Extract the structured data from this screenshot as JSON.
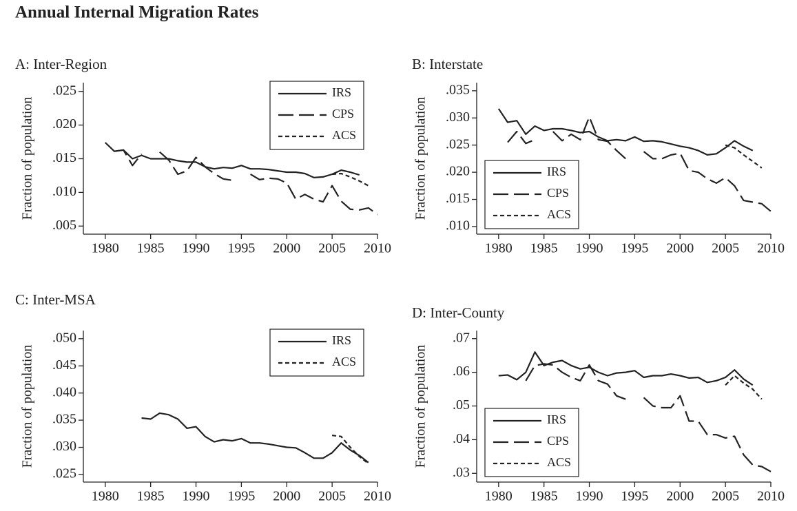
{
  "title": "Annual Internal Migration Rates",
  "chart_data": [
    {
      "type": "line",
      "title": "A: Inter-Region",
      "ylabel": "Fraction of population",
      "legend": "upper right",
      "x": [
        1980,
        1981,
        1982,
        1983,
        1984,
        1985,
        1986,
        1987,
        1988,
        1989,
        1990,
        1991,
        1992,
        1993,
        1994,
        1995,
        1996,
        1997,
        1998,
        1999,
        2000,
        2001,
        2002,
        2003,
        2004,
        2005,
        2006,
        2007,
        2008,
        2009,
        2010
      ],
      "xlim": [
        1978.8,
        2010
      ],
      "xticks": [
        1980,
        1985,
        1990,
        1995,
        2000,
        2005,
        2010
      ],
      "ylim": [
        0.0038,
        0.0263
      ],
      "yticks": [
        {
          "value": 0.005,
          "label": ".005"
        },
        {
          "value": 0.01,
          "label": ".010"
        },
        {
          "value": 0.015,
          "label": ".015"
        },
        {
          "value": 0.02,
          "label": ".020"
        },
        {
          "value": 0.025,
          "label": ".025"
        }
      ],
      "series": [
        {
          "name": "IRS",
          "color": "#222222",
          "line_style": "solid",
          "values": [
            0.0174,
            0.0161,
            0.0163,
            0.015,
            0.0155,
            0.015,
            0.015,
            0.015,
            0.0147,
            0.0145,
            0.0145,
            0.0138,
            0.0135,
            0.0137,
            0.0136,
            0.014,
            0.0135,
            0.0135,
            0.0134,
            0.0132,
            0.013,
            0.013,
            0.0128,
            0.0122,
            0.0123,
            0.0127,
            0.0133,
            0.013,
            0.0126,
            null,
            null
          ]
        },
        {
          "name": "CPS",
          "color": "#222222",
          "line_style": "long-dash",
          "values": [
            null,
            0.0161,
            0.0163,
            0.014,
            0.0157,
            null,
            0.016,
            0.0148,
            0.0127,
            0.0132,
            0.0152,
            0.0138,
            0.0128,
            0.012,
            0.0118,
            null,
            0.0127,
            0.0119,
            0.0121,
            0.012,
            0.0114,
            0.009,
            0.0097,
            0.009,
            0.0086,
            0.011,
            0.0087,
            0.0075,
            0.0074,
            0.0077,
            0.0067
          ]
        },
        {
          "name": "ACS",
          "color": "#222222",
          "line_style": "short-dash",
          "values": [
            null,
            null,
            null,
            null,
            null,
            null,
            null,
            null,
            null,
            null,
            null,
            null,
            null,
            null,
            null,
            null,
            null,
            null,
            null,
            null,
            null,
            null,
            null,
            null,
            null,
            0.0127,
            0.0128,
            0.0123,
            0.0117,
            0.011,
            null
          ]
        }
      ]
    },
    {
      "type": "line",
      "title": "B: Interstate",
      "ylabel": "Fraction of population",
      "legend": "lower left",
      "x": [
        1980,
        1981,
        1982,
        1983,
        1984,
        1985,
        1986,
        1987,
        1988,
        1989,
        1990,
        1991,
        1992,
        1993,
        1994,
        1995,
        1996,
        1997,
        1998,
        1999,
        2000,
        2001,
        2002,
        2003,
        2004,
        2005,
        2006,
        2007,
        2008,
        2009,
        2010
      ],
      "xlim": [
        1978.8,
        2010
      ],
      "xticks": [
        1980,
        1985,
        1990,
        1995,
        2000,
        2005,
        2010
      ],
      "ylim": [
        0.0086,
        0.0365
      ],
      "yticks": [
        {
          "value": 0.01,
          "label": ".010"
        },
        {
          "value": 0.015,
          "label": ".015"
        },
        {
          "value": 0.02,
          "label": ".020"
        },
        {
          "value": 0.025,
          "label": ".025"
        },
        {
          "value": 0.03,
          "label": ".030"
        },
        {
          "value": 0.035,
          "label": ".035"
        }
      ],
      "series": [
        {
          "name": "IRS",
          "color": "#222222",
          "line_style": "solid",
          "values": [
            0.0317,
            0.0292,
            0.0295,
            0.027,
            0.0285,
            0.0277,
            0.028,
            0.028,
            0.0277,
            0.0273,
            0.0275,
            0.0265,
            0.0258,
            0.026,
            0.0258,
            0.0265,
            0.0257,
            0.0258,
            0.0256,
            0.0252,
            0.0248,
            0.0245,
            0.024,
            0.0232,
            0.0234,
            0.0245,
            0.0258,
            0.0248,
            0.024,
            null,
            null
          ]
        },
        {
          "name": "CPS",
          "color": "#222222",
          "line_style": "long-dash",
          "values": [
            null,
            0.0255,
            0.0275,
            0.0253,
            0.026,
            null,
            0.0275,
            0.0258,
            0.027,
            0.026,
            0.0302,
            0.026,
            0.0257,
            0.024,
            0.0225,
            null,
            0.0238,
            0.0225,
            0.0225,
            0.0232,
            0.0235,
            0.0203,
            0.02,
            0.0188,
            0.018,
            0.019,
            0.0175,
            0.0148,
            0.0145,
            0.0142,
            0.0128
          ]
        },
        {
          "name": "ACS",
          "color": "#222222",
          "line_style": "short-dash",
          "values": [
            null,
            null,
            null,
            null,
            null,
            null,
            null,
            null,
            null,
            null,
            null,
            null,
            null,
            null,
            null,
            null,
            null,
            null,
            null,
            null,
            null,
            null,
            null,
            null,
            null,
            0.025,
            0.0245,
            0.0232,
            0.022,
            0.0208,
            null
          ]
        }
      ]
    },
    {
      "type": "line",
      "title": "C: Inter-MSA",
      "ylabel": "Fraction of population",
      "legend": "upper right",
      "x": [
        1980,
        1981,
        1982,
        1983,
        1984,
        1985,
        1986,
        1987,
        1988,
        1989,
        1990,
        1991,
        1992,
        1993,
        1994,
        1995,
        1996,
        1997,
        1998,
        1999,
        2000,
        2001,
        2002,
        2003,
        2004,
        2005,
        2006,
        2007,
        2008,
        2009,
        2010
      ],
      "xlim": [
        1978.8,
        2010
      ],
      "xticks": [
        1980,
        1985,
        1990,
        1995,
        2000,
        2005,
        2010
      ],
      "ylim": [
        0.0236,
        0.0515
      ],
      "yticks": [
        {
          "value": 0.025,
          "label": ".025"
        },
        {
          "value": 0.03,
          "label": ".030"
        },
        {
          "value": 0.035,
          "label": ".035"
        },
        {
          "value": 0.04,
          "label": ".040"
        },
        {
          "value": 0.045,
          "label": ".045"
        },
        {
          "value": 0.05,
          "label": ".050"
        }
      ],
      "series": [
        {
          "name": "IRS",
          "color": "#222222",
          "line_style": "solid",
          "values": [
            null,
            null,
            null,
            null,
            0.0354,
            0.0352,
            0.0363,
            0.036,
            0.0352,
            0.0335,
            0.0338,
            0.032,
            0.031,
            0.0314,
            0.0312,
            0.0316,
            0.0308,
            0.0308,
            0.0306,
            0.0303,
            0.03,
            0.0299,
            0.029,
            0.028,
            0.028,
            0.029,
            0.0308,
            0.0295,
            0.0285,
            0.0272,
            null
          ]
        },
        {
          "name": "ACS",
          "color": "#222222",
          "line_style": "short-dash",
          "values": [
            null,
            null,
            null,
            null,
            null,
            null,
            null,
            null,
            null,
            null,
            null,
            null,
            null,
            null,
            null,
            null,
            null,
            null,
            null,
            null,
            null,
            null,
            null,
            null,
            null,
            0.0322,
            0.032,
            0.03,
            0.0283,
            0.027,
            null
          ]
        }
      ]
    },
    {
      "type": "line",
      "title": "D: Inter-County",
      "ylabel": "Fraction of population",
      "legend": "lower left",
      "x": [
        1980,
        1981,
        1982,
        1983,
        1984,
        1985,
        1986,
        1987,
        1988,
        1989,
        1990,
        1991,
        1992,
        1993,
        1994,
        1995,
        1996,
        1997,
        1998,
        1999,
        2000,
        2001,
        2002,
        2003,
        2004,
        2005,
        2006,
        2007,
        2008,
        2009,
        2010
      ],
      "xlim": [
        1978.8,
        2010
      ],
      "xticks": [
        1980,
        1985,
        1990,
        1995,
        2000,
        2005,
        2010
      ],
      "ylim": [
        0.0274,
        0.0724
      ],
      "yticks": [
        {
          "value": 0.03,
          "label": ".03"
        },
        {
          "value": 0.04,
          "label": ".04"
        },
        {
          "value": 0.05,
          "label": ".05"
        },
        {
          "value": 0.06,
          "label": ".06"
        },
        {
          "value": 0.07,
          "label": ".07"
        }
      ],
      "series": [
        {
          "name": "IRS",
          "color": "#222222",
          "line_style": "solid",
          "values": [
            0.059,
            0.0592,
            0.0578,
            0.06,
            0.066,
            0.062,
            0.063,
            0.0635,
            0.062,
            0.061,
            0.0615,
            0.06,
            0.059,
            0.0598,
            0.06,
            0.0605,
            0.0585,
            0.059,
            0.059,
            0.0595,
            0.059,
            0.0583,
            0.0585,
            0.057,
            0.0575,
            0.0585,
            0.0607,
            0.058,
            0.0562,
            null,
            null
          ]
        },
        {
          "name": "CPS",
          "color": "#222222",
          "line_style": "long-dash",
          "values": [
            null,
            null,
            null,
            0.0575,
            0.062,
            0.0625,
            0.0622,
            0.06,
            0.0585,
            0.0575,
            0.0622,
            0.0575,
            0.0565,
            0.053,
            0.052,
            null,
            0.0525,
            0.05,
            0.0495,
            0.0495,
            0.053,
            0.0455,
            0.0455,
            0.0415,
            0.0415,
            0.0405,
            0.041,
            0.0355,
            0.0325,
            0.032,
            0.0305
          ]
        },
        {
          "name": "ACS",
          "color": "#222222",
          "line_style": "short-dash",
          "values": [
            null,
            null,
            null,
            null,
            null,
            null,
            null,
            null,
            null,
            null,
            null,
            null,
            null,
            null,
            null,
            null,
            null,
            null,
            null,
            null,
            null,
            null,
            null,
            null,
            null,
            0.0562,
            0.059,
            0.0568,
            0.055,
            0.052,
            null
          ]
        }
      ]
    }
  ]
}
